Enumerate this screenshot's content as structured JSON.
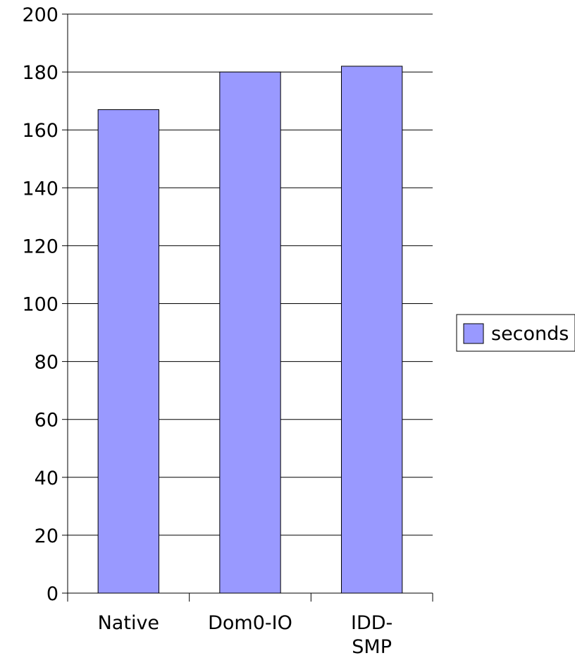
{
  "chart_data": {
    "type": "bar",
    "categories": [
      [
        "Native"
      ],
      [
        "Dom0-IO"
      ],
      [
        "IDD-",
        "SMP"
      ]
    ],
    "series": [
      {
        "name": "seconds",
        "values": [
          167,
          180,
          182
        ],
        "color": "#9999ff"
      }
    ],
    "ylim": [
      0,
      200
    ],
    "yticks": [
      0,
      20,
      40,
      60,
      80,
      100,
      120,
      140,
      160,
      180,
      200
    ],
    "grid": true,
    "legend_position": "right"
  }
}
